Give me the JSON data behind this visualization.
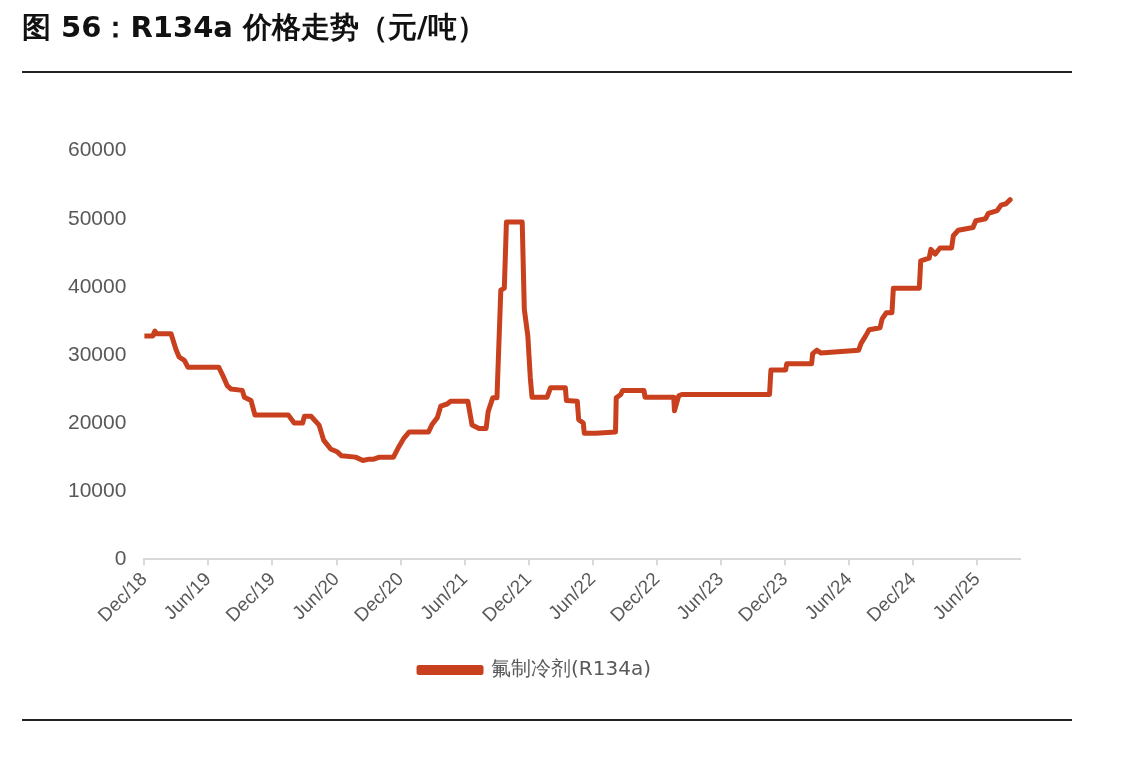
{
  "chart_data": {
    "type": "line",
    "title": "图 56：R134a 价格走势（元/吨）",
    "xlim": [
      "2018-12-01",
      "2025-10-01"
    ],
    "xticks": [
      {
        "value": "2018-12-01",
        "label": "Dec/18"
      },
      {
        "value": "2019-06-01",
        "label": "Jun/19"
      },
      {
        "value": "2019-12-01",
        "label": "Dec/19"
      },
      {
        "value": "2020-06-01",
        "label": "Jun/20"
      },
      {
        "value": "2020-12-01",
        "label": "Dec/20"
      },
      {
        "value": "2021-06-01",
        "label": "Jun/21"
      },
      {
        "value": "2021-12-01",
        "label": "Dec/21"
      },
      {
        "value": "2022-06-01",
        "label": "Jun/22"
      },
      {
        "value": "2022-12-01",
        "label": "Dec/22"
      },
      {
        "value": "2023-06-01",
        "label": "Jun/23"
      },
      {
        "value": "2023-12-01",
        "label": "Dec/23"
      },
      {
        "value": "2024-06-01",
        "label": "Jun/24"
      },
      {
        "value": "2024-12-01",
        "label": "Dec/24"
      },
      {
        "value": "2025-06-01",
        "label": "Jun/25"
      }
    ],
    "ylim": [
      0,
      60000
    ],
    "yticks": [
      0,
      10000,
      20000,
      30000,
      40000,
      50000,
      60000
    ],
    "grid": false,
    "legend": "bottom",
    "marker": "none",
    "line_style": "solid",
    "series": [
      {
        "name": "氟制冷剂(R134a)",
        "color": "#c9401e",
        "x": [
          "2018-12-01",
          "2018-12-25",
          "2018-12-31",
          "2019-01-05",
          "2019-02-15",
          "2019-03-01",
          "2019-03-10",
          "2019-03-25",
          "2019-04-04",
          "2019-07-01",
          "2019-07-15",
          "2019-07-25",
          "2019-08-05",
          "2019-09-06",
          "2019-09-12",
          "2019-10-01",
          "2019-10-12",
          "2020-01-15",
          "2020-02-01",
          "2020-02-25",
          "2020-03-01",
          "2020-03-20",
          "2020-04-12",
          "2020-04-25",
          "2020-05-15",
          "2020-06-02",
          "2020-06-15",
          "2020-07-25",
          "2020-08-15",
          "2020-09-01",
          "2020-09-15",
          "2020-10-01",
          "2020-11-10",
          "2020-11-25",
          "2020-12-10",
          "2020-12-25",
          "2021-02-18",
          "2021-02-28",
          "2021-03-15",
          "2021-03-25",
          "2021-04-12",
          "2021-04-22",
          "2021-06-10",
          "2021-06-22",
          "2021-07-12",
          "2021-08-01",
          "2021-08-07",
          "2021-08-20",
          "2021-09-01",
          "2021-09-12",
          "2021-09-22",
          "2021-09-28",
          "2021-11-12",
          "2021-11-18",
          "2021-11-28",
          "2021-12-05",
          "2021-12-10",
          "2022-01-22",
          "2022-02-01",
          "2022-03-15",
          "2022-03-18",
          "2022-04-18",
          "2022-04-22",
          "2022-05-05",
          "2022-05-08",
          "2022-06-10",
          "2022-08-05",
          "2022-08-07",
          "2022-08-20",
          "2022-08-25",
          "2022-10-25",
          "2022-10-28",
          "2023-01-18",
          "2023-01-20",
          "2023-02-01",
          "2023-02-10",
          "2023-10-18",
          "2023-10-22",
          "2023-12-03",
          "2023-12-06",
          "2024-02-15",
          "2024-02-18",
          "2024-03-01",
          "2024-03-12",
          "2024-06-28",
          "2024-07-05",
          "2024-07-18",
          "2024-07-28",
          "2024-08-28",
          "2024-09-03",
          "2024-09-15",
          "2024-10-01",
          "2024-10-05",
          "2024-12-18",
          "2024-12-22",
          "2025-01-15",
          "2025-01-20",
          "2025-02-01",
          "2025-02-15",
          "2025-03-20",
          "2025-03-25",
          "2025-04-08",
          "2025-05-20",
          "2025-05-28",
          "2025-06-25",
          "2025-07-03",
          "2025-07-28",
          "2025-08-08",
          "2025-08-22",
          "2025-09-03"
        ],
        "values": [
          32800,
          32800,
          33500,
          33100,
          33100,
          30800,
          29700,
          29200,
          28200,
          28200,
          26700,
          25500,
          25000,
          24800,
          23800,
          23300,
          21200,
          21200,
          20000,
          20000,
          21000,
          21000,
          19700,
          17500,
          16200,
          15800,
          15200,
          15000,
          14500,
          14700,
          14700,
          15000,
          15000,
          16500,
          17800,
          18700,
          18700,
          19800,
          20800,
          22500,
          22800,
          23200,
          23200,
          19700,
          19200,
          19200,
          21700,
          23700,
          23700,
          39500,
          39800,
          49500,
          49500,
          36700,
          32800,
          26700,
          23800,
          23800,
          25200,
          25200,
          23300,
          23200,
          20500,
          20000,
          18500,
          18500,
          18700,
          23700,
          24200,
          24800,
          24800,
          23800,
          23800,
          21800,
          24000,
          24200,
          24200,
          27800,
          27800,
          28700,
          28700,
          30200,
          30700,
          30300,
          30700,
          31700,
          32800,
          33700,
          34000,
          35300,
          36200,
          36200,
          39800,
          39800,
          43800,
          44200,
          45500,
          44800,
          45700,
          45700,
          47500,
          48300,
          48700,
          49700,
          50000,
          50800,
          51200,
          52000,
          52200,
          52800
        ]
      }
    ]
  }
}
